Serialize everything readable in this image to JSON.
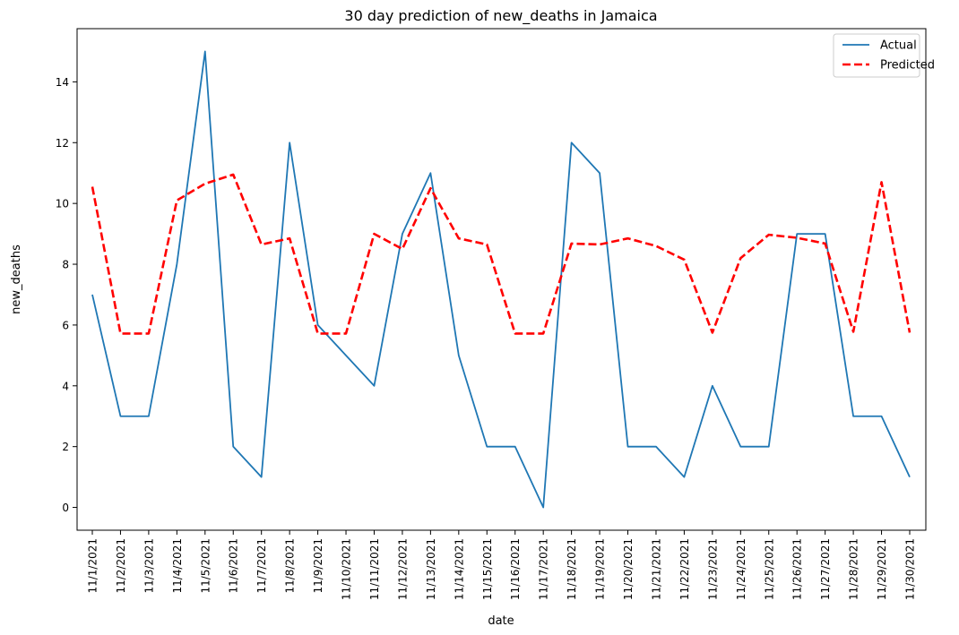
{
  "chart_data": {
    "type": "line",
    "title": "30 day prediction of new_deaths in Jamaica",
    "xlabel": "date",
    "ylabel": "new_deaths",
    "ylim": [
      -0.75,
      15.75
    ],
    "yticks": [
      0,
      2,
      4,
      6,
      8,
      10,
      12,
      14
    ],
    "grid": false,
    "legend_position": "top-right",
    "categories": [
      "11/1/2021",
      "11/2/2021",
      "11/3/2021",
      "11/4/2021",
      "11/5/2021",
      "11/6/2021",
      "11/7/2021",
      "11/8/2021",
      "11/9/2021",
      "11/10/2021",
      "11/11/2021",
      "11/12/2021",
      "11/13/2021",
      "11/14/2021",
      "11/15/2021",
      "11/16/2021",
      "11/17/2021",
      "11/18/2021",
      "11/19/2021",
      "11/20/2021",
      "11/21/2021",
      "11/22/2021",
      "11/23/2021",
      "11/24/2021",
      "11/25/2021",
      "11/26/2021",
      "11/27/2021",
      "11/28/2021",
      "11/29/2021",
      "11/30/2021"
    ],
    "series": [
      {
        "name": "Actual",
        "color": "#1f77b4",
        "style": "solid",
        "values": [
          7,
          3,
          3,
          8,
          15,
          2,
          1,
          12,
          6,
          5,
          4,
          9,
          11,
          5,
          2,
          2,
          0,
          12,
          11,
          2,
          2,
          1,
          4,
          2,
          2,
          9,
          9,
          3,
          3,
          1
        ]
      },
      {
        "name": "Predicted",
        "color": "#ff0000",
        "style": "dashed",
        "values": [
          10.55,
          5.72,
          5.72,
          10.1,
          10.65,
          10.95,
          8.65,
          8.85,
          5.72,
          5.72,
          9.0,
          8.5,
          10.5,
          8.85,
          8.65,
          5.72,
          5.72,
          8.68,
          8.65,
          8.85,
          8.6,
          8.15,
          5.75,
          8.2,
          8.97,
          8.87,
          8.68,
          5.78,
          10.7,
          5.75
        ]
      }
    ]
  }
}
